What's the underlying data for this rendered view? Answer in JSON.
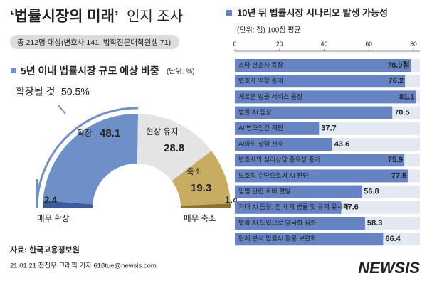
{
  "header": {
    "title_bold": "‘법률시장의 미래’",
    "title_rest": "인지 조사",
    "subtitle": "총 212명 대상(변호사 141, 법학전문대학원생 71)"
  },
  "chart_data": [
    {
      "type": "half-donut",
      "title": "5년 이내 법률시장 규모 예상 비중",
      "unit": "(단위: %)",
      "categories": [
        "매우 확장",
        "확장",
        "현상 유지",
        "축소",
        "매우 축소"
      ],
      "values": [
        2.4,
        48.1,
        28.8,
        19.3,
        1.4
      ],
      "colors": [
        "#3a5c9a",
        "#6f8fc8",
        "#e4e4e4",
        "#c8ac62",
        "#8c7232"
      ],
      "annotation": {
        "text": "확장될 것",
        "value": 50.5,
        "value_label": "50.5%",
        "color": "#6f8fc8"
      }
    },
    {
      "type": "hbar",
      "title": "10년 뒤 법률시장 시나리오 발생 가능성",
      "unit": "(단위: 점) 100점 평균",
      "categories": [
        "스타 변호사 등장",
        "변호사 역할 증대",
        "새로운 법률 서비스 등장",
        "법률 AI 등장",
        "AI 법조인간 재판",
        "AI와의 상담 선호",
        "변호사의 심리상담 중요성 증가",
        "보조적 수단으로써 AI 판단",
        "입법 관련 로비 활발",
        "거대 AI 등장, 전 세계 법률 및 규제 유사화",
        "법률 AI 도입으로 양극화 심화",
        "판례 분석 법률AI 활용 보편화"
      ],
      "values": [
        78.9,
        76.2,
        81.1,
        70.5,
        37.7,
        43.6,
        75.9,
        77.5,
        56.8,
        47.6,
        58.3,
        66.4
      ],
      "value_labels": [
        "78.9점",
        "76.2",
        "81.1",
        "70.5",
        "37.7",
        "43.6",
        "75.9",
        "77.5",
        "56.8",
        "47.6",
        "58.3",
        "66.4"
      ],
      "color": "#6683c4",
      "xlim": [
        0,
        80
      ],
      "xticks": [
        0,
        20,
        40,
        60,
        80
      ]
    }
  ],
  "footer": {
    "source": "자료: 한국고용정보원",
    "credit": "21.01.21 전진우 그래픽 기자 618tue@newsis.com",
    "watermark": "NEWSIS"
  }
}
